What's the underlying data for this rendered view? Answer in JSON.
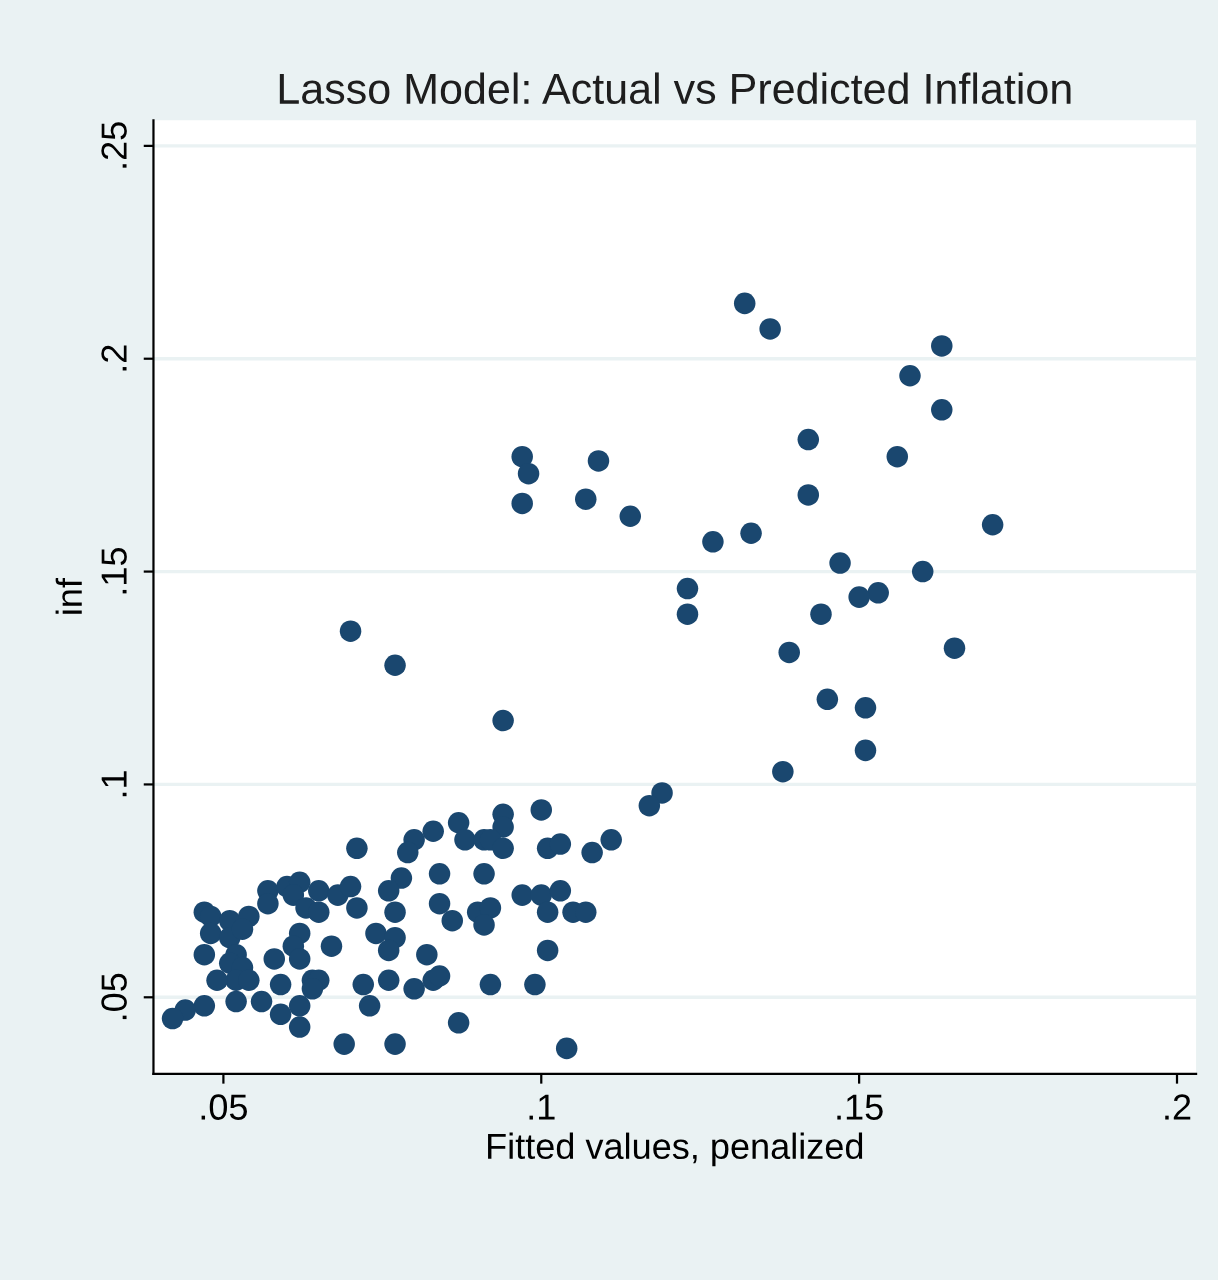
{
  "chart_data": {
    "type": "scatter",
    "title": "Lasso Model: Actual vs Predicted Inflation",
    "xlabel": "Fitted values, penalized",
    "ylabel": "inf",
    "xlim": [
      0.039,
      0.203
    ],
    "ylim": [
      0.032,
      0.256
    ],
    "xticks": [
      {
        "value": 0.05,
        "label": ".05"
      },
      {
        "value": 0.1,
        "label": ".1"
      },
      {
        "value": 0.15,
        "label": ".15"
      },
      {
        "value": 0.2,
        "label": ".2"
      }
    ],
    "yticks": [
      {
        "value": 0.05,
        "label": ".05"
      },
      {
        "value": 0.1,
        "label": ".1"
      },
      {
        "value": 0.15,
        "label": ".15"
      },
      {
        "value": 0.2,
        "label": ".2"
      },
      {
        "value": 0.25,
        "label": ".25"
      }
    ],
    "grid": "y",
    "marker": "circle",
    "series": [
      {
        "color": "#1a476f",
        "x": [
          0.132,
          0.136,
          0.163,
          0.158,
          0.163,
          0.142,
          0.156,
          0.097,
          0.098,
          0.109,
          0.142,
          0.097,
          0.107,
          0.114,
          0.171,
          0.133,
          0.127,
          0.147,
          0.16,
          0.123,
          0.153,
          0.15,
          0.123,
          0.144,
          0.07,
          0.077,
          0.165,
          0.139,
          0.145,
          0.151,
          0.094,
          0.151,
          0.138,
          0.119,
          0.117,
          0.1,
          0.094,
          0.087,
          0.083,
          0.094,
          0.111,
          0.08,
          0.088,
          0.091,
          0.092,
          0.094,
          0.071,
          0.101,
          0.103,
          0.079,
          0.108,
          0.078,
          0.084,
          0.091,
          0.057,
          0.06,
          0.062,
          0.061,
          0.065,
          0.068,
          0.07,
          0.063,
          0.065,
          0.071,
          0.057,
          0.076,
          0.097,
          0.1,
          0.103,
          0.101,
          0.105,
          0.107,
          0.084,
          0.077,
          0.09,
          0.092,
          0.091,
          0.086,
          0.047,
          0.048,
          0.051,
          0.054,
          0.048,
          0.051,
          0.053,
          0.062,
          0.061,
          0.067,
          0.074,
          0.077,
          0.076,
          0.101,
          0.047,
          0.058,
          0.062,
          0.052,
          0.051,
          0.053,
          0.052,
          0.054,
          0.082,
          0.049,
          0.059,
          0.064,
          0.065,
          0.064,
          0.072,
          0.076,
          0.08,
          0.083,
          0.084,
          0.092,
          0.099,
          0.056,
          0.052,
          0.062,
          0.047,
          0.059,
          0.073,
          0.044,
          0.042,
          0.062,
          0.087,
          0.069,
          0.077,
          0.104
        ],
        "values": [
          0.213,
          0.207,
          0.203,
          0.196,
          0.188,
          0.181,
          0.177,
          0.177,
          0.173,
          0.176,
          0.168,
          0.166,
          0.167,
          0.163,
          0.161,
          0.159,
          0.157,
          0.152,
          0.15,
          0.146,
          0.145,
          0.144,
          0.14,
          0.14,
          0.136,
          0.128,
          0.132,
          0.131,
          0.12,
          0.118,
          0.115,
          0.108,
          0.103,
          0.098,
          0.095,
          0.094,
          0.093,
          0.091,
          0.089,
          0.09,
          0.087,
          0.087,
          0.087,
          0.087,
          0.087,
          0.085,
          0.085,
          0.085,
          0.086,
          0.084,
          0.084,
          0.078,
          0.079,
          0.079,
          0.075,
          0.076,
          0.077,
          0.074,
          0.075,
          0.074,
          0.076,
          0.071,
          0.07,
          0.071,
          0.072,
          0.075,
          0.074,
          0.074,
          0.075,
          0.07,
          0.07,
          0.07,
          0.072,
          0.07,
          0.07,
          0.071,
          0.067,
          0.068,
          0.07,
          0.069,
          0.068,
          0.069,
          0.065,
          0.064,
          0.066,
          0.065,
          0.062,
          0.062,
          0.065,
          0.064,
          0.061,
          0.061,
          0.06,
          0.059,
          0.059,
          0.06,
          0.058,
          0.057,
          0.054,
          0.054,
          0.06,
          0.054,
          0.053,
          0.054,
          0.054,
          0.052,
          0.053,
          0.054,
          0.052,
          0.054,
          0.055,
          0.053,
          0.053,
          0.049,
          0.049,
          0.048,
          0.048,
          0.046,
          0.048,
          0.047,
          0.045,
          0.043,
          0.044,
          0.039,
          0.039,
          0.038
        ]
      }
    ]
  }
}
